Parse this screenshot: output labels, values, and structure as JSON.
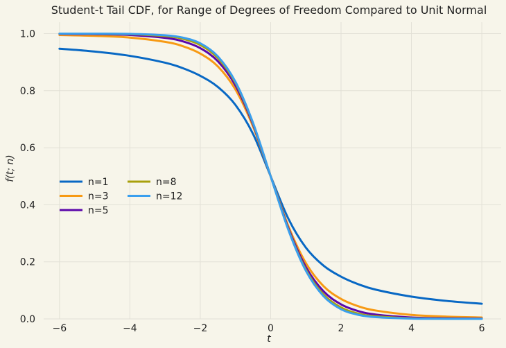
{
  "chart_data": {
    "type": "line",
    "title": "Student-t Tail CDF, for Range of Degrees of Freedom Compared to Unit Normal",
    "xlabel": "t",
    "ylabel": "f(t; n)",
    "xlim": [
      -6.45,
      6.55
    ],
    "ylim": [
      0.0,
      1.04
    ],
    "x_ticks": [
      -6,
      -4,
      -2,
      0,
      2,
      4,
      6
    ],
    "x_tick_labels": [
      "−6",
      "−4",
      "−2",
      "0",
      "2",
      "4",
      "6"
    ],
    "y_ticks": [
      0.0,
      0.2,
      0.4,
      0.6,
      0.8,
      1.0
    ],
    "y_tick_labels": [
      "0.0",
      "0.2",
      "0.4",
      "0.6",
      "0.8",
      "1.0"
    ],
    "grid": true,
    "legend": {
      "placement": "center-left",
      "columns": 2
    },
    "series": [
      {
        "name": "n=1",
        "color": "#0868c4",
        "x": [
          -6,
          -5,
          -4,
          -3,
          -2.5,
          -2,
          -1.5,
          -1,
          -0.5,
          0,
          0.5,
          1,
          1.5,
          2,
          2.5,
          3,
          4,
          5,
          6
        ],
        "y": [
          0.947,
          0.937,
          0.922,
          0.898,
          0.879,
          0.852,
          0.813,
          0.75,
          0.648,
          0.5,
          0.352,
          0.25,
          0.187,
          0.148,
          0.121,
          0.102,
          0.078,
          0.063,
          0.053
        ]
      },
      {
        "name": "n=3",
        "color": "#f79a14",
        "x": [
          -6,
          -5,
          -4,
          -3,
          -2.5,
          -2,
          -1.5,
          -1,
          -0.5,
          0,
          0.5,
          1,
          1.5,
          2,
          2.5,
          3,
          4,
          5,
          6
        ],
        "y": [
          0.995,
          0.992,
          0.986,
          0.971,
          0.956,
          0.93,
          0.885,
          0.804,
          0.674,
          0.5,
          0.326,
          0.196,
          0.115,
          0.07,
          0.044,
          0.029,
          0.014,
          0.008,
          0.005
        ]
      },
      {
        "name": "n=5",
        "color": "#5b06aa",
        "x": [
          -6,
          -5,
          -4,
          -3,
          -2.5,
          -2,
          -1.5,
          -1,
          -0.5,
          0,
          0.5,
          1,
          1.5,
          2,
          2.5,
          3,
          4,
          5,
          6
        ],
        "y": [
          0.999,
          0.998,
          0.995,
          0.985,
          0.973,
          0.949,
          0.903,
          0.818,
          0.681,
          0.5,
          0.319,
          0.182,
          0.097,
          0.051,
          0.027,
          0.015,
          0.005,
          0.002,
          0.001
        ]
      },
      {
        "name": "n=8",
        "color": "#a8a00b",
        "x": [
          -6,
          -5,
          -4,
          -3,
          -2.5,
          -2,
          -1.5,
          -1,
          -0.5,
          0,
          0.5,
          1,
          1.5,
          2,
          2.5,
          3,
          4,
          5,
          6
        ],
        "y": [
          1.0,
          0.9995,
          0.998,
          0.991,
          0.982,
          0.96,
          0.914,
          0.827,
          0.685,
          0.5,
          0.315,
          0.173,
          0.086,
          0.04,
          0.018,
          0.009,
          0.002,
          0.0005,
          0.0
        ]
      },
      {
        "name": "n=12",
        "color": "#3a9fee",
        "x": [
          -6,
          -5,
          -4,
          -3,
          -2.5,
          -2,
          -1.5,
          -1,
          -0.5,
          0,
          0.5,
          1,
          1.5,
          2,
          2.5,
          3,
          4,
          5,
          6
        ],
        "y": [
          1.0,
          0.9999,
          0.999,
          0.994,
          0.986,
          0.966,
          0.92,
          0.831,
          0.687,
          0.5,
          0.313,
          0.169,
          0.08,
          0.034,
          0.014,
          0.006,
          0.001,
          0.0001,
          0.0
        ]
      }
    ]
  }
}
